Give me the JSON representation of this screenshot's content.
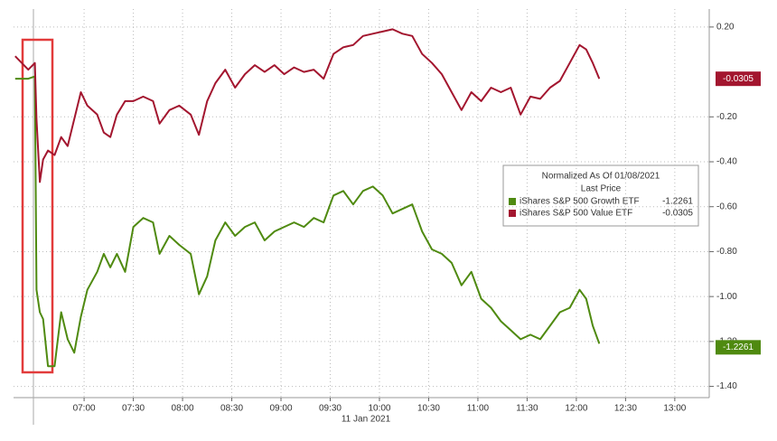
{
  "chart_data": {
    "type": "line",
    "x": [
      "06:18",
      "06:22",
      "06:26",
      "06:30",
      "06:31",
      "06:33",
      "06:35",
      "06:38",
      "06:42",
      "06:46",
      "06:50",
      "06:54",
      "06:58",
      "07:02",
      "07:08",
      "07:12",
      "07:16",
      "07:20",
      "07:25",
      "07:30",
      "07:36",
      "07:42",
      "07:46",
      "07:52",
      "07:58",
      "08:05",
      "08:10",
      "08:15",
      "08:20",
      "08:26",
      "08:32",
      "08:38",
      "08:44",
      "08:50",
      "08:56",
      "09:02",
      "09:08",
      "09:14",
      "09:20",
      "09:26",
      "09:32",
      "09:38",
      "09:44",
      "09:50",
      "09:56",
      "10:02",
      "10:08",
      "10:14",
      "10:20",
      "10:26",
      "10:32",
      "10:38",
      "10:44",
      "10:50",
      "10:56",
      "11:02",
      "11:08",
      "11:14",
      "11:20",
      "11:26",
      "11:32",
      "11:38",
      "11:44",
      "11:50",
      "11:56",
      "12:02",
      "12:06",
      "12:10",
      "12:14"
    ],
    "series": [
      {
        "name": "iShares S&P 500 Growth ETF",
        "color": "#4f8a10",
        "last_price": -1.2261,
        "values": [
          -0.03,
          -0.03,
          -0.03,
          -0.02,
          -0.97,
          -1.07,
          -1.1,
          -1.31,
          -1.31,
          -1.07,
          -1.19,
          -1.25,
          -1.09,
          -0.97,
          -0.89,
          -0.81,
          -0.87,
          -0.81,
          -0.89,
          -0.69,
          -0.65,
          -0.67,
          -0.81,
          -0.73,
          -0.77,
          -0.81,
          -0.99,
          -0.91,
          -0.75,
          -0.67,
          -0.73,
          -0.69,
          -0.67,
          -0.75,
          -0.71,
          -0.69,
          -0.67,
          -0.69,
          -0.65,
          -0.67,
          -0.55,
          -0.53,
          -0.59,
          -0.53,
          -0.51,
          -0.55,
          -0.63,
          -0.61,
          -0.59,
          -0.71,
          -0.79,
          -0.81,
          -0.85,
          -0.95,
          -0.89,
          -1.01,
          -1.05,
          -1.11,
          -1.15,
          -1.19,
          -1.17,
          -1.19,
          -1.13,
          -1.07,
          -1.05,
          -0.97,
          -1.01,
          -1.13,
          -1.21
        ]
      },
      {
        "name": "iShares S&P 500 Value ETF",
        "color": "#a3162f",
        "last_price": -0.0305,
        "values": [
          0.07,
          0.04,
          0.01,
          0.04,
          -0.21,
          -0.49,
          -0.39,
          -0.35,
          -0.37,
          -0.29,
          -0.33,
          -0.21,
          -0.09,
          -0.15,
          -0.19,
          -0.27,
          -0.29,
          -0.19,
          -0.13,
          -0.13,
          -0.11,
          -0.13,
          -0.23,
          -0.17,
          -0.15,
          -0.19,
          -0.28,
          -0.13,
          -0.05,
          0.01,
          -0.07,
          -0.01,
          0.03,
          0.0,
          0.03,
          -0.01,
          0.02,
          0.0,
          0.01,
          -0.03,
          0.08,
          0.11,
          0.12,
          0.16,
          0.17,
          0.18,
          0.19,
          0.17,
          0.16,
          0.08,
          0.04,
          -0.01,
          -0.09,
          -0.17,
          -0.09,
          -0.13,
          -0.07,
          -0.09,
          -0.07,
          -0.19,
          -0.11,
          -0.12,
          -0.07,
          -0.04,
          0.04,
          0.12,
          0.1,
          0.04,
          -0.03
        ]
      }
    ],
    "xlim": [
      "06:17",
      "13:21"
    ],
    "xticks": [
      "07:00",
      "07:30",
      "08:00",
      "08:30",
      "09:00",
      "09:30",
      "10:00",
      "10:30",
      "11:00",
      "11:30",
      "12:00",
      "12:30",
      "13:00"
    ],
    "x_label": "11 Jan 2021",
    "ylim": [
      -1.45,
      0.28
    ],
    "yticks": [
      {
        "value": 0.2,
        "label": "0.20"
      },
      {
        "value": -0.2,
        "label": "-0.20"
      },
      {
        "value": -0.4,
        "label": "-0.40"
      },
      {
        "value": -0.6,
        "label": "-0.60"
      },
      {
        "value": -0.8,
        "label": "-0.80"
      },
      {
        "value": -1.0,
        "label": "-1.00"
      },
      {
        "value": -1.2,
        "label": "-1.20"
      },
      {
        "value": -1.4,
        "label": "-1.40"
      }
    ],
    "grid": true,
    "legend": {
      "title": "Normalized As Of 01/08/2021",
      "subtitle": "Last Price"
    }
  }
}
